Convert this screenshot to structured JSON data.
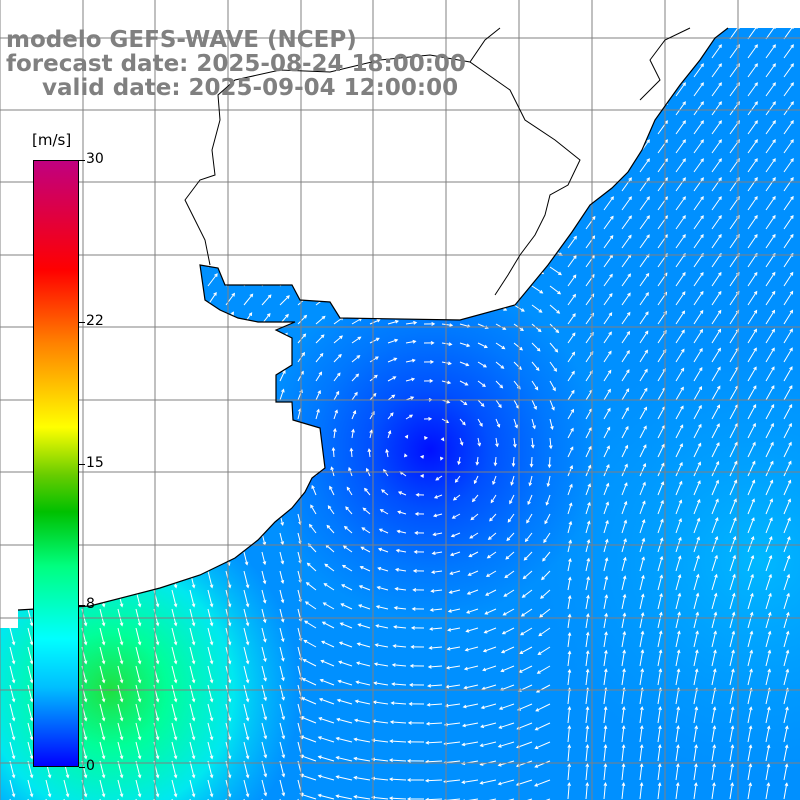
{
  "title": {
    "line1": "modelo GEFS-WAVE (NCEP)",
    "line2": "forecast date: 2025-08-24 18:00:00",
    "line3": "valid date: 2025-09-04 12:00:00"
  },
  "colorbar": {
    "unit": "[m/s]",
    "ticks": [
      "30",
      "22",
      "15",
      "8",
      "0"
    ],
    "tick_values": [
      30,
      22,
      15,
      8,
      0
    ],
    "range": [
      0,
      30
    ],
    "colors": [
      "#0000ff",
      "#00bfff",
      "#00ffff",
      "#00ff80",
      "#00c000",
      "#ffff00",
      "#ff8000",
      "#ff0000",
      "#c00080"
    ]
  },
  "map": {
    "variable": "wind speed and direction",
    "grid_line_color": "#808080",
    "land_color": "#ffffff",
    "coastline_color": "#000000",
    "min_wind_region": "blue low centered offshore",
    "max_wind_region": "green band along lower left"
  }
}
